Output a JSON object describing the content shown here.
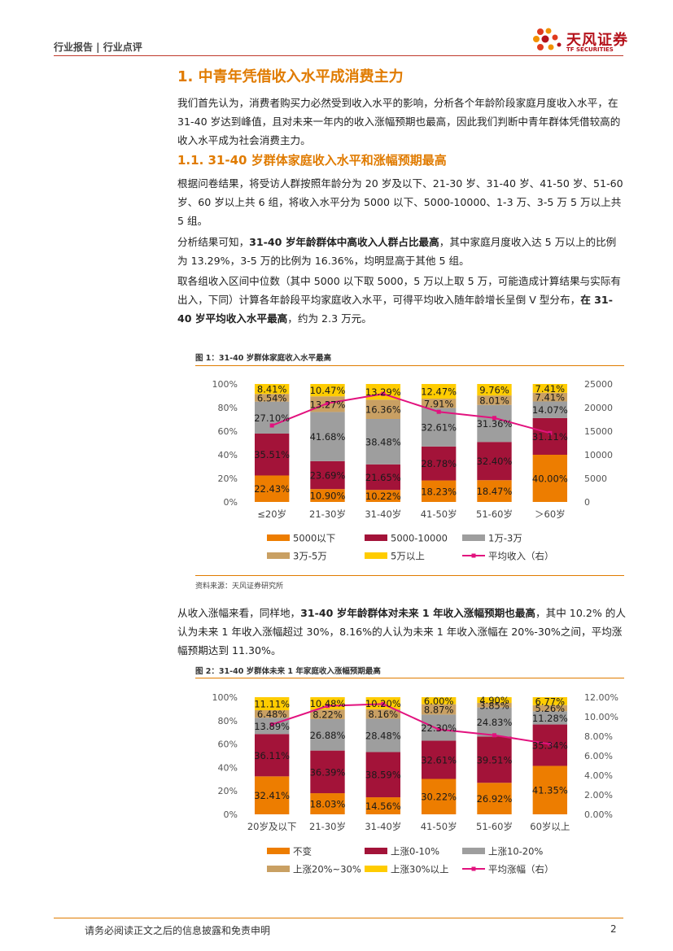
{
  "header": {
    "left": "行业报告 | 行业点评",
    "logo_cn": "天风证券",
    "logo_en": "TF SECURITIES"
  },
  "section1": {
    "title": "1. 中青年凭借收入水平成消费主力",
    "p1": "我们首先认为，消费者购买力必然受到收入水平的影响，分析各个年龄阶段家庭月度收入水平，在 31-40 岁达到峰值，且对未来一年内的收入涨幅预期也最高，因此我们判断中青年群体凭借较高的收入水平成为社会消费主力。"
  },
  "section11": {
    "title": "1.1. 31-40 岁群体家庭收入水平和涨幅预期最高",
    "p1": "根据问卷结果，将受访人群按照年龄分为 20 岁及以下、21-30 岁、31-40 岁、41-50 岁、51-60 岁、60 岁以上共 6 组，将收入水平分为 5000 以下、5000-10000、1-3 万、3-5 万 5 万以上共 5 组。",
    "p2a": "分析结果可知，",
    "p2b": "31-40 岁年龄群体中高收入人群占比最高",
    "p2c": "，其中家庭月度收入达 5 万以上的比例为 13.29%，3-5 万的比例为 16.36%，均明显高于其他 5 组。",
    "p3a": "取各组收入区间中位数（其中 5000 以下取 5000，5 万以上取 5 万，可能造成计算结果与实际有出入，下同）计算各年龄段平均家庭收入水平，可得平均收入随年龄增长呈倒 V 型分布，",
    "p3b": "在 31-40 岁平均收入水平最高",
    "p3c": "，约为 2.3 万元。",
    "p4a": "从收入涨幅来看，同样地，",
    "p4b": "31-40 岁年龄群体对未来 1 年收入涨幅预期也最高",
    "p4c": "，其中 10.2% 的人认为未来 1 年收入涨幅超过 30%，8.16%的人认为未来 1 年收入涨幅在 20%-30%之间，平均涨幅预期达到 11.30%。"
  },
  "figure1": {
    "title": "图 1：31-40 岁群体家庭收入水平最高",
    "source": "资料来源：天风证券研究所"
  },
  "figure2": {
    "title": "图 2：31-40 岁群体未来 1 年家庭收入涨幅预期最高"
  },
  "footer": {
    "disclaimer": "请务必阅读正文之后的信息披露和免责申明",
    "page": "2"
  },
  "colors": {
    "c0": "#ED7D00",
    "c1": "#A31339",
    "c2": "#9E9E9E",
    "c3": "#C9A063",
    "c4": "#FFCC00",
    "line": "#E2127E"
  },
  "chart_data": [
    {
      "type": "bar",
      "stacked": true,
      "categories": [
        "≤20岁",
        "21-30岁",
        "31-40岁",
        "41-50岁",
        "51-60岁",
        "＞60岁"
      ],
      "series": [
        {
          "name": "5000以下",
          "values": [
            22.43,
            10.9,
            10.22,
            18.23,
            18.47,
            40.0
          ]
        },
        {
          "name": "5000-10000",
          "values": [
            35.51,
            23.69,
            21.65,
            28.78,
            32.4,
            31.11
          ]
        },
        {
          "name": "1万-3万",
          "values": [
            27.1,
            41.68,
            38.48,
            32.61,
            31.36,
            14.07
          ]
        },
        {
          "name": "3万-5万",
          "values": [
            6.54,
            13.27,
            16.36,
            7.91,
            8.01,
            7.41
          ]
        },
        {
          "name": "5万以上",
          "values": [
            8.41,
            10.47,
            13.29,
            12.47,
            9.76,
            7.41
          ]
        }
      ],
      "line": {
        "name": "平均收入（右）",
        "values": [
          16200,
          20900,
          22900,
          19100,
          17800,
          14600
        ]
      },
      "labels": [
        [
          "22.43%",
          "10.90%",
          "10.22%",
          "18.23%",
          "18.47%",
          "40.00%"
        ],
        [
          "35.51%",
          "23.69%",
          "21.65%",
          "28.78%",
          "32.40%",
          "31.11%"
        ],
        [
          "27.10%",
          "41.68%",
          "38.48%",
          "32.61%",
          "31.36%",
          "14.07%"
        ],
        [
          "6.54%",
          "13.27%",
          "16.36%",
          "7.91%",
          "8.01%",
          "7.41%"
        ],
        [
          "8.41%",
          "10.47%",
          "13.29%",
          "12.47%",
          "9.76%",
          "7.41%"
        ]
      ],
      "left_ticks": [
        "0%",
        "20%",
        "40%",
        "60%",
        "80%",
        "100%"
      ],
      "right_ticks": [
        "0",
        "5000",
        "10000",
        "15000",
        "20000",
        "25000"
      ],
      "ylim": [
        0,
        100
      ],
      "y2lim": [
        0,
        25000
      ]
    },
    {
      "type": "bar",
      "stacked": true,
      "categories": [
        "20岁及以下",
        "21-30岁",
        "31-40岁",
        "41-50岁",
        "51-60岁",
        "60岁以上"
      ],
      "series": [
        {
          "name": "不变",
          "values": [
            32.41,
            18.03,
            14.56,
            30.22,
            26.92,
            41.35
          ]
        },
        {
          "name": "上涨0-10%",
          "values": [
            36.11,
            36.39,
            38.59,
            32.61,
            39.51,
            35.34
          ]
        },
        {
          "name": "上涨10-20%",
          "values": [
            13.89,
            26.88,
            28.48,
            22.3,
            24.83,
            11.28
          ]
        },
        {
          "name": "上涨20%~30%",
          "values": [
            6.48,
            8.22,
            8.16,
            8.87,
            3.85,
            5.26
          ]
        },
        {
          "name": "上涨30%以上",
          "values": [
            11.11,
            10.48,
            10.2,
            6.0,
            4.9,
            6.77
          ]
        }
      ],
      "line": {
        "name": "平均涨幅（右）",
        "values": [
          9.2,
          11.1,
          11.3,
          8.7,
          8.1,
          7.2
        ]
      },
      "labels": [
        [
          "32.41%",
          "18.03%",
          "14.56%",
          "30.22%",
          "26.92%",
          "41.35%"
        ],
        [
          "36.11%",
          "36.39%",
          "38.59%",
          "32.61%",
          "39.51%",
          "35.34%"
        ],
        [
          "13.89%",
          "26.88%",
          "28.48%",
          "22.30%",
          "24.83%",
          "11.28%"
        ],
        [
          "6.48%",
          "8.22%",
          "8.16%",
          "8.87%",
          "3.85%",
          "5.26%"
        ],
        [
          "11.11%",
          "10.48%",
          "10.20%",
          "6.00%",
          "4.90%",
          "6.77%"
        ]
      ],
      "left_ticks": [
        "0%",
        "20%",
        "40%",
        "60%",
        "80%",
        "100%"
      ],
      "right_ticks": [
        "0.00%",
        "2.00%",
        "4.00%",
        "6.00%",
        "8.00%",
        "10.00%",
        "12.00%"
      ],
      "ylim": [
        0,
        100
      ],
      "y2lim": [
        0,
        12
      ]
    }
  ]
}
